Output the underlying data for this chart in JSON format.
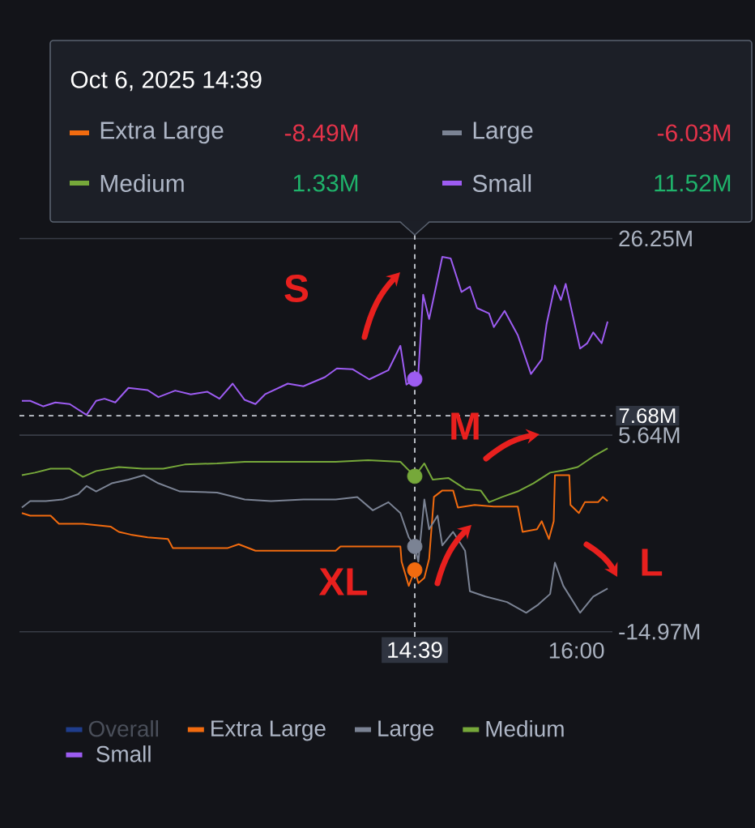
{
  "chart_data": {
    "type": "line",
    "xlim": [
      11.35,
      16.3
    ],
    "ylim": [
      -15.5,
      26.8
    ],
    "xticks": [
      {
        "value": 14.65,
        "label": "14:39"
      },
      {
        "value": 16,
        "label": "16:00"
      }
    ],
    "yticks": [
      {
        "value": -14.97,
        "label": "-14.97M"
      },
      {
        "value": 5.64,
        "label": "5.64M"
      },
      {
        "value": 26.25,
        "label": "26.25M"
      }
    ],
    "grid": "y",
    "legend": "bottom",
    "series": [
      {
        "name": "Overall",
        "color": "#1f3d8c"
      },
      {
        "name": "Extra Large",
        "color": "#f26b0f",
        "x": [
          11.37,
          11.44,
          11.61,
          11.68,
          11.88,
          12.11,
          12.18,
          12.28,
          12.42,
          12.59,
          12.63,
          12.78,
          13.09,
          13.18,
          13.32,
          13.53,
          13.72,
          13.99,
          14.03,
          14.53,
          14.54,
          14.6,
          14.65,
          14.68,
          14.73,
          14.77,
          14.81,
          14.88,
          14.97,
          15.01,
          15.15,
          15.31,
          15.51,
          15.55,
          15.67,
          15.71,
          15.77,
          15.81,
          15.82,
          15.94,
          15.95,
          16.02,
          16.07,
          16.18,
          16.22,
          16.26
        ],
        "values": [
          -2.53,
          -2.8,
          -2.8,
          -3.65,
          -3.65,
          -3.94,
          -4.5,
          -4.79,
          -5.08,
          -5.25,
          -6.19,
          -6.19,
          -6.19,
          -5.8,
          -6.48,
          -6.48,
          -6.48,
          -6.48,
          -6.03,
          -6.03,
          -7.62,
          -10.16,
          -8.49,
          -9.87,
          -9.32,
          -7.33,
          -0.84,
          -0.16,
          -0.16,
          -1.95,
          -1.68,
          -1.85,
          -1.85,
          -4.5,
          -4.23,
          -3.38,
          -5.25,
          -3.38,
          1.44,
          1.44,
          -1.68,
          -2.53,
          -1.39,
          -1.39,
          -0.84,
          -1.28
        ]
      },
      {
        "name": "Large",
        "color": "#7b8394",
        "x": [
          11.37,
          11.44,
          11.57,
          11.71,
          11.84,
          11.91,
          11.99,
          12.12,
          12.26,
          12.39,
          12.51,
          12.69,
          13.0,
          13.23,
          13.45,
          13.72,
          13.99,
          14.17,
          14.3,
          14.43,
          14.53,
          14.6,
          14.65,
          14.68,
          14.73,
          14.77,
          14.84,
          14.88,
          14.97,
          15.07,
          15.11,
          15.24,
          15.42,
          15.58,
          15.68,
          15.78,
          15.82,
          15.89,
          16.03,
          16.14,
          16.26
        ],
        "values": [
          -1.95,
          -1.28,
          -1.28,
          -1.11,
          -0.55,
          0.3,
          -0.26,
          0.59,
          0.98,
          1.44,
          0.59,
          -0.26,
          -0.38,
          -1.11,
          -1.28,
          -1.11,
          -1.11,
          -0.84,
          -2.24,
          -1.39,
          -2.53,
          -5.08,
          -6.03,
          -7.62,
          -1.11,
          -4.23,
          -2.8,
          -5.92,
          -4.5,
          -6.48,
          -10.72,
          -11.28,
          -11.86,
          -12.98,
          -12.13,
          -11.01,
          -7.72,
          -10.16,
          -12.98,
          -11.28,
          -10.43
        ]
      },
      {
        "name": "Medium",
        "color": "#76a83a",
        "x": [
          11.37,
          11.48,
          11.61,
          11.77,
          11.88,
          11.99,
          12.18,
          12.38,
          12.55,
          12.73,
          13.0,
          13.23,
          13.45,
          13.72,
          13.99,
          14.26,
          14.53,
          14.65,
          14.73,
          14.8,
          14.93,
          15.07,
          15.2,
          15.27,
          15.38,
          15.51,
          15.64,
          15.78,
          15.91,
          16.01,
          16.14,
          16.26
        ],
        "values": [
          1.44,
          1.71,
          2.12,
          2.12,
          1.27,
          1.88,
          2.29,
          2.12,
          2.12,
          2.56,
          2.68,
          2.85,
          2.85,
          2.85,
          2.85,
          3.01,
          2.85,
          1.33,
          2.68,
          0.98,
          1.15,
          0.01,
          -0.16,
          -1.39,
          -0.84,
          -0.26,
          0.59,
          1.71,
          2.0,
          2.29,
          3.4,
          4.25
        ]
      },
      {
        "name": "Small",
        "color": "#9d5cf2",
        "x": [
          11.37,
          11.44,
          11.55,
          11.65,
          11.77,
          11.91,
          11.99,
          12.06,
          12.15,
          12.26,
          12.42,
          12.51,
          12.65,
          12.78,
          12.92,
          13.02,
          13.13,
          13.23,
          13.32,
          13.4,
          13.59,
          13.72,
          13.9,
          14.0,
          14.13,
          14.27,
          14.43,
          14.53,
          14.58,
          14.65,
          14.68,
          14.72,
          14.77,
          14.88,
          14.95,
          15.04,
          15.11,
          15.17,
          15.27,
          15.31,
          15.4,
          15.51,
          15.62,
          15.71,
          15.75,
          15.82,
          15.87,
          15.91,
          16.03,
          16.09,
          16.14,
          16.21,
          16.26
        ],
        "values": [
          9.24,
          9.24,
          8.66,
          9.07,
          8.9,
          7.76,
          9.24,
          9.46,
          9.07,
          10.6,
          10.36,
          9.63,
          10.31,
          9.92,
          10.19,
          9.46,
          11.04,
          9.34,
          8.9,
          9.92,
          11.04,
          10.77,
          11.72,
          12.63,
          12.56,
          11.49,
          12.46,
          15.01,
          10.94,
          11.52,
          12.17,
          20.36,
          17.82,
          24.33,
          24.16,
          20.65,
          21.21,
          18.96,
          18.4,
          16.97,
          18.67,
          16.12,
          12.05,
          13.58,
          17.26,
          21.33,
          19.81,
          21.5,
          14.72,
          15.28,
          16.41,
          15.28,
          17.55
        ]
      },
      {
        "type": "scatter",
        "x": [
          14.65,
          14.65,
          14.65,
          14.65
        ],
        "values": [
          -8.49,
          -6.03,
          1.33,
          11.52
        ],
        "colors": [
          "#f26b0f",
          "#7b8394",
          "#76a83a",
          "#9d5cf2"
        ]
      }
    ],
    "ref_lines": [
      {
        "axis": "x",
        "value": 14.65,
        "line_style": "dashed",
        "color": "#c8ccd4"
      },
      {
        "axis": "y",
        "value": 7.68,
        "label": "7.68M",
        "line_style": "dashed",
        "color": "#c8ccd4"
      }
    ],
    "annotations": [
      "Oct 6, 2025 14:39",
      "-8.49M",
      "-6.03M",
      "1.33M",
      "11.52M",
      "S",
      "M",
      "XL",
      "L"
    ]
  }
}
